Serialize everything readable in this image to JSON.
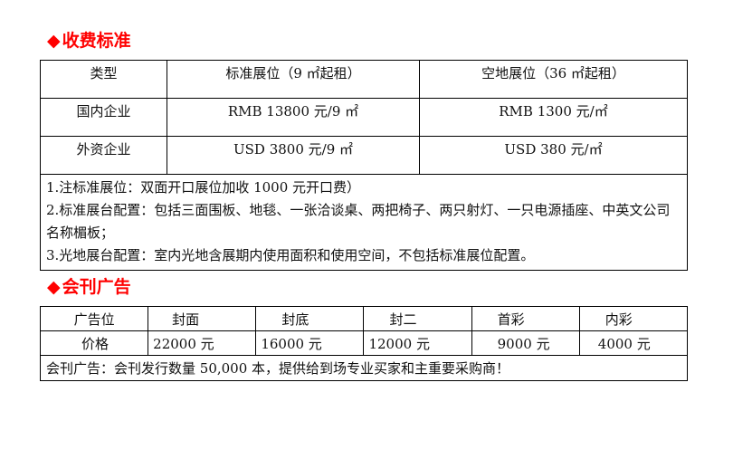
{
  "section1": {
    "title": "收费标准",
    "bullet": "◆",
    "headers": [
      "类型",
      "标准展位（9 ㎡起租）",
      "空地展位（36 ㎡起租）"
    ],
    "rows": [
      [
        "国内企业",
        "RMB 13800 元/9 ㎡",
        "RMB 1300 元/㎡"
      ],
      [
        "外资企业",
        "USD 3800 元/9 ㎡",
        "USD 380 元/㎡"
      ]
    ],
    "notes": [
      "1.注标准展位：双面开口展位加收 1000 元开口费）",
      "2.标准展台配置：包括三面围板、地毯、一张洽谈桌、两把椅子、两只射灯、一只电源插座、中英文公司名称楣板；",
      "3.光地展台配置：室内光地含展期内使用面积和使用空间，不包括标准展位配置。"
    ]
  },
  "section2": {
    "title": "会刊广告",
    "bullet": "◆",
    "headers": [
      "广告位",
      "封面",
      "封底",
      "封二",
      "首彩",
      "内彩"
    ],
    "prices": [
      "价格",
      "22000 元",
      "16000 元",
      "12000 元",
      "9000 元",
      "4000 元"
    ],
    "note": "会刊广告：会刊发行数量 50,000 本，提供给到场专业买家和主重要采购商！"
  },
  "colors": {
    "heading": "#ff0000",
    "border": "#000000"
  }
}
